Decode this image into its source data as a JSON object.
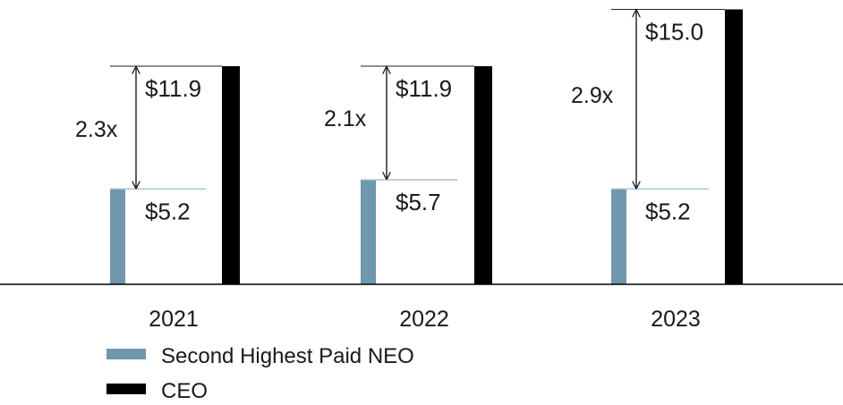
{
  "chart_data": {
    "type": "bar",
    "categories": [
      "2021",
      "2022",
      "2023"
    ],
    "series": [
      {
        "name": "Second Highest Paid NEO",
        "values": [
          5.2,
          5.7,
          5.2
        ],
        "color": "#6f97ad",
        "labels": [
          "$5.2",
          "$5.7",
          "$5.2"
        ]
      },
      {
        "name": "CEO",
        "values": [
          11.9,
          11.9,
          15.0
        ],
        "color": "#000000",
        "labels": [
          "$11.9",
          "$11.9",
          "$15.0"
        ]
      }
    ],
    "ratios": [
      "2.3x",
      "2.1x",
      "2.9x"
    ],
    "title": "",
    "xlabel": "",
    "ylabel": "",
    "ylim": [
      0,
      15
    ],
    "grid": false,
    "legend_position": "bottom-left"
  }
}
